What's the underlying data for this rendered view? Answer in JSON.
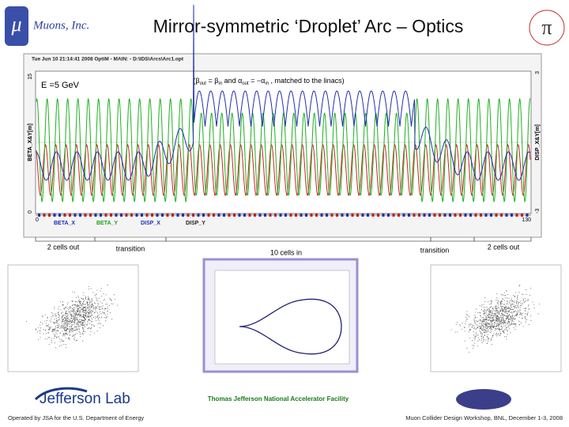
{
  "header": {
    "company": "Muons, Inc.",
    "title": "Mirror-symmetric ‘Droplet’ Arc – Optics"
  },
  "plot": {
    "header": "Tue Jun 10 21:14:41 2008    OptiM - MAIN: - D:\\IDS\\Arcs\\Arc1.opt",
    "energy": "E =5 GeV",
    "note": [
      "(β",
      "out",
      " = β",
      "in",
      " and α",
      "out",
      " = −α",
      "in",
      " , matched to the linacs)"
    ],
    "left_axis": "BETA_X&Y[m]",
    "right_axis": "DISP_X&Y[m]",
    "left_ticks": [
      "15",
      "0"
    ],
    "right_ticks": [
      "3",
      "-3"
    ],
    "bottom_ticks": [
      "0",
      "130"
    ],
    "legend": [
      "BETA_X",
      "BETA_Y",
      "DISP_X",
      "DISP_Y"
    ]
  },
  "sections": [
    "2 cells out",
    "transition",
    "10 cells in",
    "transition",
    "2 cells out"
  ],
  "footer": {
    "lab": "Jefferson Lab",
    "facility": "Thomas Jefferson National Accelerator Facility",
    "operated": "Operated by JSA for the U.S. Department of Energy",
    "workshop": "Muon Collider Design Workshop, BNL, December 1-3, 2008"
  }
}
